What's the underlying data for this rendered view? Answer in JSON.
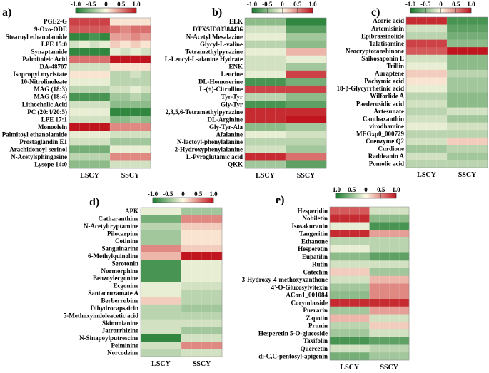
{
  "chart_data": [
    {
      "type": "heatmap",
      "panel_label": "a)",
      "columns": [
        "LSCY",
        "SSCY"
      ],
      "rows": [
        "PGE2-G",
        "9-Oxo-ODE",
        "Stearoyl ethanolamide",
        "LPE 15:0",
        "Synaptamide",
        "Palmitoleic Acid",
        "DA-48707",
        "Isopropyl myristate",
        "10-Nitrolinoleate",
        "MAG (18:3)",
        "MAG (18:4)",
        "Lithocholic Acid",
        "PC (20:4/20:5)",
        "LPE 17:1",
        "Monoolein",
        "Palmitoyl ethanolamide",
        "Prostaglandin E1",
        "Arachidonoyl serinol",
        "N-Acetylsphingosine",
        "Lysope 14:0"
      ],
      "values": [
        [
          0.8,
          0.8,
          0.8,
          0.8,
          0.1,
          0.1,
          0.1,
          0.1
        ],
        [
          0.7,
          0.7,
          0.7,
          0.7,
          0.6,
          0.5,
          0.6,
          0.6
        ],
        [
          -0.9,
          -0.9,
          -0.8,
          -0.9,
          0.4,
          0.4,
          0.5,
          0.4
        ],
        [
          -0.2,
          -0.1,
          -0.2,
          -0.1,
          0.2,
          0.1,
          0.2,
          0.1
        ],
        [
          -0.9,
          -0.9,
          -0.9,
          -0.9,
          -0.1,
          -0.2,
          -0.1,
          -0.2
        ],
        [
          0.6,
          0.6,
          0.6,
          0.6,
          1.0,
          1.0,
          1.0,
          1.0
        ],
        [
          -0.2,
          -0.2,
          -0.2,
          -0.2,
          0.1,
          0.1,
          0.1,
          0.1
        ],
        [
          0.1,
          0.1,
          0.1,
          0.1,
          -0.3,
          -0.3,
          -0.2,
          -0.3
        ],
        [
          -0.1,
          -0.1,
          -0.1,
          -0.1,
          -0.3,
          -0.3,
          -0.3,
          -0.3
        ],
        [
          -0.3,
          -0.3,
          -0.3,
          -0.3,
          -0.2,
          -0.2,
          -0.1,
          -0.2
        ],
        [
          -0.8,
          -0.8,
          -0.8,
          -0.8,
          -0.4,
          -0.4,
          -0.3,
          -0.4
        ],
        [
          -0.2,
          -0.2,
          -0.2,
          -0.2,
          -0.5,
          -0.5,
          -0.5,
          -0.5
        ],
        [
          -0.1,
          -0.1,
          -0.1,
          -0.1,
          -0.9,
          -0.9,
          -0.9,
          -0.9
        ],
        [
          -0.2,
          -0.2,
          -0.2,
          -0.2,
          -0.5,
          -0.5,
          -0.4,
          -0.5
        ],
        [
          1.0,
          1.0,
          1.0,
          1.0,
          0.5,
          0.5,
          0.5,
          0.5
        ],
        [
          -0.1,
          -0.1,
          -0.1,
          -0.1,
          -0.2,
          -0.2,
          -0.2,
          -0.2
        ],
        [
          -0.2,
          -0.2,
          -0.2,
          -0.2,
          -0.4,
          -0.4,
          -0.4,
          -0.4
        ],
        [
          -0.6,
          -0.6,
          -0.6,
          -0.6,
          -0.1,
          -0.1,
          -0.1,
          -0.1
        ],
        [
          -0.3,
          -0.3,
          -0.3,
          -0.3,
          0.5,
          0.5,
          0.5,
          0.5
        ],
        [
          -0.5,
          -0.5,
          -0.5,
          -0.5,
          -0.2,
          -0.2,
          -0.2,
          -0.2
        ]
      ]
    },
    {
      "type": "heatmap",
      "panel_label": "b)",
      "columns": [
        "LSCY",
        "SSCY"
      ],
      "rows": [
        "ELK",
        "DTXSID80384436",
        "N-Acetyl Mesalazine",
        "Glycyl-L-valine",
        "Tetramethylpyrazine",
        "L-Leucyl-L-alanine Hydrate",
        "ENK",
        "Leucine",
        "DL-Homoserine",
        "L-(+)-Citrulline",
        "Tyr-Tyr",
        "Gly-Tyr",
        "2,3,5,6-Tetramethylpyrazine",
        "DL-Arginine",
        "Gly-Tyr-Ala",
        "Afalanine",
        "N-lactoyl-phenylalanine",
        "2-Hydroxyphenylalanine",
        "L-Pyroglutamic acid",
        "QKK"
      ],
      "values": [
        [
          -0.5,
          -0.5,
          -0.5,
          -0.5,
          -0.9,
          -0.9,
          -0.9,
          -0.9
        ],
        [
          -0.2,
          -0.2,
          -0.2,
          -0.2,
          -0.7,
          -0.7,
          -0.7,
          -0.7
        ],
        [
          -0.1,
          -0.1,
          -0.1,
          -0.1,
          -0.4,
          -0.4,
          -0.4,
          -0.4
        ],
        [
          -0.3,
          -0.3,
          -0.3,
          -0.3,
          -0.5,
          -0.5,
          -0.5,
          -0.5
        ],
        [
          -0.1,
          -0.1,
          -0.1,
          -0.1,
          0.3,
          0.3,
          0.3,
          0.3
        ],
        [
          -0.2,
          -0.2,
          -0.2,
          -0.2,
          -0.1,
          -0.1,
          -0.1,
          -0.1
        ],
        [
          -0.2,
          -0.2,
          -0.2,
          -0.2,
          -0.4,
          -0.4,
          -0.4,
          -0.4
        ],
        [
          -0.1,
          -0.1,
          -0.1,
          -0.1,
          0.8,
          0.8,
          0.8,
          0.8
        ],
        [
          -0.8,
          -0.8,
          -0.8,
          -0.8,
          -0.6,
          -0.6,
          -0.6,
          -0.6
        ],
        [
          0.8,
          0.8,
          0.8,
          0.8,
          0.8,
          0.8,
          0.8,
          0.8
        ],
        [
          -0.3,
          -0.3,
          -0.3,
          -0.3,
          -0.5,
          -0.5,
          -0.5,
          -0.5
        ],
        [
          -0.8,
          -0.8,
          -0.8,
          -0.8,
          -0.7,
          -0.7,
          -0.7,
          -0.7
        ],
        [
          0.9,
          0.9,
          0.9,
          0.9,
          0.9,
          0.9,
          0.9,
          0.9
        ],
        [
          0.9,
          0.9,
          0.9,
          0.9,
          1.0,
          1.0,
          1.0,
          1.0
        ],
        [
          -0.5,
          -0.5,
          -0.5,
          -0.5,
          -0.4,
          -0.4,
          -0.4,
          -0.4
        ],
        [
          -0.1,
          -0.1,
          -0.1,
          -0.1,
          -0.2,
          -0.2,
          -0.2,
          -0.2
        ],
        [
          -0.3,
          -0.3,
          -0.3,
          -0.3,
          -0.3,
          -0.3,
          -0.3,
          -0.3
        ],
        [
          -0.2,
          -0.2,
          -0.2,
          -0.2,
          -0.4,
          -0.4,
          -0.4,
          -0.4
        ],
        [
          0.9,
          0.9,
          0.9,
          0.9,
          0.6,
          0.6,
          0.6,
          0.6
        ],
        [
          -0.4,
          -0.4,
          -0.4,
          -0.4,
          -0.7,
          -0.7,
          -0.7,
          -0.7
        ]
      ]
    },
    {
      "type": "heatmap",
      "panel_label": "c)",
      "columns": [
        "LSCY",
        "SSCY"
      ],
      "rows": [
        "Acoric acid",
        "Artemisinin",
        "Epibrassinolide",
        "Talatisamine",
        "Neocryptotanshinone",
        "Saikosaponin E",
        "Trillin",
        "Auraptene",
        "Pachymic acid",
        "18-β-Glycyrrhetinic acid",
        "Wilforlide A",
        "Paederosidic acid",
        "Artesunate",
        "Canthaxanthin",
        "virodhamine",
        "MEGxp0_000729",
        "Coenzyme Q2",
        "Curdione",
        "Raddeanin A",
        "Pomolic acid"
      ],
      "values": [
        [
          0.9,
          0.9,
          0.9,
          0.9,
          -0.8,
          -0.8,
          -0.8,
          -0.8
        ],
        [
          -0.2,
          -0.2,
          -0.2,
          -0.2,
          -0.7,
          -0.7,
          -0.7,
          -0.7
        ],
        [
          -0.3,
          -0.3,
          -0.3,
          -0.3,
          -0.6,
          -0.6,
          -0.6,
          -0.6
        ],
        [
          0.8,
          0.8,
          0.8,
          0.8,
          -0.5,
          -0.5,
          -0.5,
          -0.5
        ],
        [
          0.7,
          0.7,
          0.7,
          0.7,
          1.0,
          1.0,
          1.0,
          1.0
        ],
        [
          -0.2,
          -0.2,
          -0.2,
          -0.2,
          -0.5,
          -0.5,
          -0.5,
          -0.5
        ],
        [
          -0.1,
          -0.1,
          -0.1,
          -0.1,
          -0.5,
          -0.5,
          -0.5,
          -0.5
        ],
        [
          0.2,
          0.2,
          0.2,
          0.2,
          -0.3,
          -0.3,
          -0.3,
          -0.3
        ],
        [
          0.1,
          0.1,
          0.1,
          0.1,
          -0.4,
          -0.4,
          -0.4,
          -0.4
        ],
        [
          -0.1,
          -0.1,
          -0.1,
          -0.1,
          -0.4,
          -0.4,
          -0.4,
          -0.4
        ],
        [
          -0.3,
          -0.3,
          -0.3,
          -0.3,
          -0.5,
          -0.5,
          -0.5,
          -0.5
        ],
        [
          -0.2,
          -0.2,
          -0.2,
          -0.2,
          -0.5,
          -0.5,
          -0.5,
          -0.5
        ],
        [
          -0.3,
          -0.3,
          -0.3,
          -0.3,
          -0.2,
          -0.2,
          -0.2,
          -0.2
        ],
        [
          -0.2,
          -0.2,
          -0.2,
          -0.2,
          -0.4,
          -0.4,
          -0.4,
          -0.4
        ],
        [
          -0.1,
          -0.1,
          -0.1,
          -0.1,
          -0.2,
          -0.2,
          -0.2,
          -0.2
        ],
        [
          -0.3,
          -0.3,
          -0.3,
          -0.3,
          -0.3,
          -0.3,
          -0.3,
          -0.3
        ],
        [
          -0.2,
          -0.2,
          -0.2,
          -0.2,
          0.2,
          0.2,
          0.2,
          0.2
        ],
        [
          -0.4,
          -0.4,
          -0.4,
          -0.4,
          -0.3,
          -0.3,
          -0.3,
          -0.3
        ],
        [
          -0.2,
          -0.2,
          -0.2,
          -0.2,
          -0.4,
          -0.4,
          -0.4,
          -0.4
        ],
        [
          -0.3,
          -0.3,
          -0.3,
          -0.3,
          -0.3,
          -0.3,
          -0.3,
          -0.3
        ]
      ]
    },
    {
      "type": "heatmap",
      "panel_label": "d)",
      "columns": [
        "LSCY",
        "SSCY"
      ],
      "rows": [
        "APK",
        "Catharanthine",
        "N-Acetyltryptamine",
        "Pilocarpine",
        "Cotinine",
        "Sanguinarine",
        "6-Methylquinoline",
        "Serotonin",
        "Normorphine",
        "Benzoylecgonine",
        "Ecgonine",
        "Santacruzamate A",
        "Berberrubine",
        "Dihydrocapsaicin",
        "5-Methoxyindoleacetic acid",
        "Skimmianine",
        "Jatrorrhizine",
        "N-Sinapoylputrescine",
        "Peiminine",
        "Norcodeine"
      ],
      "values": [
        [
          -0.1,
          -0.1,
          -0.1,
          -0.1,
          -0.4,
          -0.4,
          -0.4,
          -0.4
        ],
        [
          -0.6,
          -0.6,
          -0.6,
          -0.6,
          0.5,
          0.5,
          0.5,
          0.5
        ],
        [
          -0.3,
          -0.3,
          -0.3,
          -0.3,
          0.2,
          0.2,
          0.2,
          0.2
        ],
        [
          -0.4,
          -0.4,
          -0.4,
          -0.4,
          0.1,
          0.1,
          0.1,
          0.1
        ],
        [
          -0.4,
          -0.4,
          -0.4,
          -0.4,
          0.1,
          0.1,
          0.1,
          0.1
        ],
        [
          0.5,
          0.5,
          0.5,
          0.5,
          0.2,
          0.2,
          0.2,
          0.2
        ],
        [
          0.3,
          0.3,
          0.3,
          0.3,
          1.0,
          1.0,
          1.0,
          1.0
        ],
        [
          -0.8,
          -0.8,
          -0.8,
          -0.8,
          -0.1,
          -0.1,
          -0.1,
          -0.1
        ],
        [
          -0.8,
          -0.8,
          -0.8,
          -0.8,
          -0.1,
          -0.1,
          -0.1,
          -0.1
        ],
        [
          -0.8,
          -0.8,
          -0.8,
          -0.8,
          -0.1,
          -0.1,
          -0.1,
          -0.1
        ],
        [
          -0.1,
          -0.1,
          -0.1,
          -0.1,
          -0.2,
          -0.2,
          -0.2,
          -0.2
        ],
        [
          -0.1,
          -0.1,
          -0.1,
          -0.1,
          -0.3,
          -0.3,
          -0.3,
          -0.3
        ],
        [
          0.2,
          0.2,
          0.2,
          0.2,
          -0.3,
          -0.3,
          -0.3,
          -0.3
        ],
        [
          -0.3,
          -0.3,
          -0.3,
          -0.3,
          -0.4,
          -0.4,
          -0.4,
          -0.4
        ],
        [
          -0.3,
          -0.3,
          -0.3,
          -0.3,
          -0.3,
          -0.3,
          -0.3,
          -0.3
        ],
        [
          -0.2,
          -0.2,
          -0.2,
          -0.2,
          -0.2,
          -0.2,
          -0.2,
          -0.2
        ],
        [
          -0.2,
          -0.2,
          -0.2,
          -0.2,
          -0.4,
          -0.4,
          -0.4,
          -0.4
        ],
        [
          -0.9,
          -0.9,
          -0.9,
          -0.9,
          -0.2,
          -0.2,
          -0.2,
          -0.2
        ],
        [
          -0.2,
          -0.2,
          -0.2,
          -0.2,
          0.5,
          0.5,
          0.5,
          0.5
        ],
        [
          -0.3,
          -0.3,
          -0.3,
          -0.3,
          -0.2,
          -0.2,
          -0.2,
          -0.2
        ]
      ]
    },
    {
      "type": "heatmap",
      "panel_label": "e)",
      "columns": [
        "LSCY",
        "SSCY"
      ],
      "rows": [
        "Hesperidin",
        "Nobiletin",
        "Isosakuranin",
        "Tangeritin",
        "Ethanone",
        "Hesperetin",
        "Eupatilin",
        "Rutin",
        "Catechin",
        "3-Hydroxy-4-methoxyxanthone",
        "4'-O-Glucosylvitexin",
        "ACon1_001084",
        "Corymboside",
        "Puerarin",
        "Zapotin",
        "Prunin",
        "Hesperetin 5-O-glucoside",
        "Taxifolin",
        "Quercetin",
        "di-C,C-pentosyl-apigenin"
      ],
      "values": [
        [
          0.7,
          0.7,
          0.7,
          0.7,
          -0.2,
          -0.2,
          -0.2,
          -0.2
        ],
        [
          0.9,
          0.9,
          0.9,
          0.9,
          -0.5,
          -0.5,
          -0.5,
          -0.5
        ],
        [
          -0.1,
          -0.1,
          -0.1,
          -0.1,
          -0.8,
          -0.8,
          -0.8,
          -0.8
        ],
        [
          0.9,
          0.9,
          0.9,
          0.9,
          0.4,
          0.4,
          0.4,
          0.4
        ],
        [
          -0.3,
          -0.3,
          -0.3,
          -0.3,
          -0.3,
          -0.3,
          -0.3,
          -0.3
        ],
        [
          -0.1,
          -0.1,
          -0.1,
          -0.1,
          -0.3,
          -0.3,
          -0.3,
          -0.3
        ],
        [
          -0.5,
          -0.5,
          -0.5,
          -0.5,
          -0.7,
          -0.7,
          -0.7,
          -0.7
        ],
        [
          -0.2,
          -0.2,
          -0.2,
          -0.2,
          -0.2,
          -0.2,
          -0.2,
          -0.2
        ],
        [
          0.2,
          0.2,
          0.2,
          0.2,
          -0.4,
          -0.4,
          -0.4,
          -0.4
        ],
        [
          -0.2,
          -0.2,
          -0.2,
          -0.2,
          0.3,
          0.3,
          0.3,
          0.3
        ],
        [
          -0.4,
          -0.4,
          -0.4,
          -0.4,
          0.5,
          0.5,
          0.5,
          0.5
        ],
        [
          -0.5,
          -0.5,
          -0.5,
          -0.5,
          0.5,
          0.5,
          0.5,
          0.5
        ],
        [
          0.9,
          0.9,
          0.9,
          0.9,
          0.9,
          0.9,
          0.9,
          0.9
        ],
        [
          -0.4,
          -0.4,
          -0.4,
          -0.4,
          0.4,
          0.4,
          0.4,
          0.4
        ],
        [
          0.3,
          0.3,
          0.3,
          0.3,
          -0.2,
          -0.2,
          -0.2,
          -0.2
        ],
        [
          -0.3,
          -0.3,
          -0.3,
          -0.3,
          0.2,
          0.2,
          0.2,
          0.2
        ],
        [
          -0.4,
          -0.4,
          -0.4,
          -0.4,
          -0.2,
          -0.2,
          -0.2,
          -0.2
        ],
        [
          -0.8,
          -0.8,
          -0.8,
          -0.8,
          -0.7,
          -0.7,
          -0.7,
          -0.7
        ],
        [
          -0.2,
          -0.2,
          -0.2,
          -0.2,
          -0.3,
          -0.3,
          -0.3,
          -0.3
        ],
        [
          -0.6,
          -0.6,
          -0.6,
          -0.6,
          -0.4,
          -0.4,
          -0.4,
          -0.4
        ]
      ]
    }
  ],
  "colorbar": {
    "ticks": [
      "-1.0",
      "-0.5",
      "0",
      "0.5",
      "1.0"
    ],
    "range": [
      -1.0,
      1.0
    ],
    "color_low": "#1a7a2e",
    "color_mid": "#fffbe6",
    "color_high": "#c0141e"
  }
}
